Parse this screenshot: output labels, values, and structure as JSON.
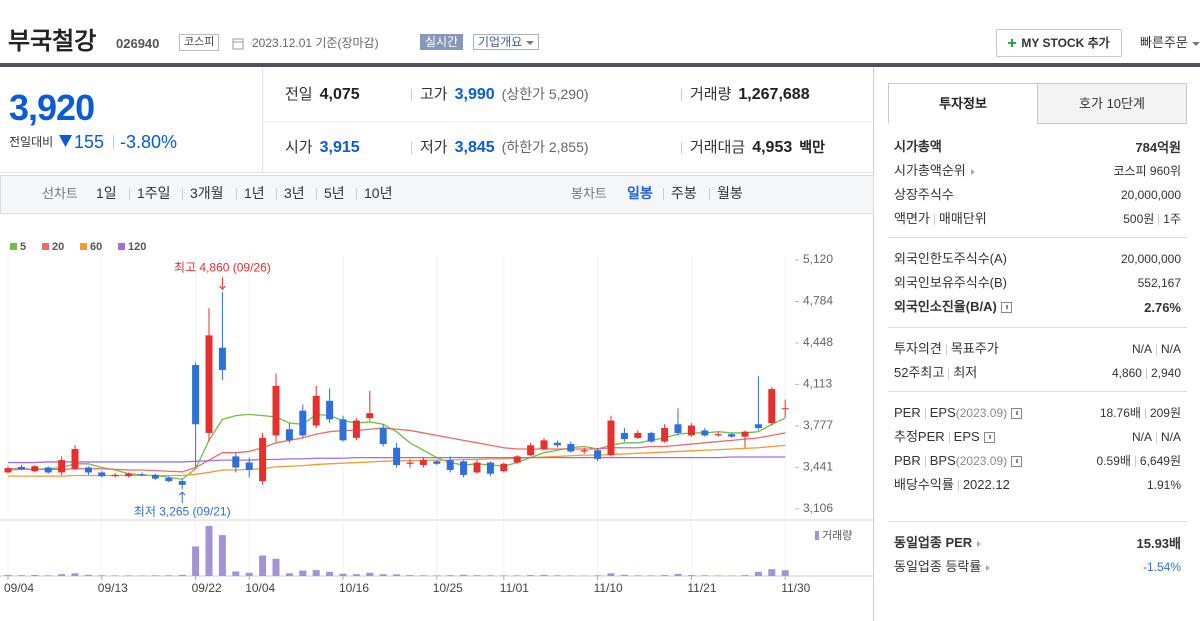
{
  "header": {
    "name": "부국철강",
    "code": "026940",
    "market": "코스피",
    "date": "2023.12.01 기준(장마감)",
    "realtime": "실시간",
    "overview": "기업개요",
    "my_stock": "MY STOCK 추가",
    "quick_order": "빠른주문"
  },
  "quote": {
    "price": "3,920",
    "color": "#0b5bd3",
    "change_label": "전일대비",
    "change": "155",
    "change_rate": "-3.80%",
    "stats": [
      {
        "label": "전일",
        "value": "4,075"
      },
      {
        "label": "고가",
        "value": "3,990",
        "note": "(상한가 5,290)",
        "color": "#0b5bd3"
      },
      {
        "label": "거래량",
        "value": "1,267,688"
      },
      {
        "label": "시가",
        "value": "3,915",
        "color": "#0b5bd3"
      },
      {
        "label": "저가",
        "value": "3,845",
        "note": "(하한가 2,855)",
        "color": "#0b5bd3"
      },
      {
        "label": "거래대금",
        "value": "4,953",
        "unit": "백만"
      }
    ]
  },
  "tabs": {
    "line_label": "선차트",
    "line_periods": [
      "1일",
      "1주일",
      "3개월",
      "1년",
      "3년",
      "5년",
      "10년"
    ],
    "candle_label": "봉차트",
    "candle_periods": [
      "일봉",
      "주봉",
      "월봉"
    ],
    "selected_candle": 0
  },
  "chart_data": {
    "type": "candlestick",
    "categories": [
      "09/04",
      null,
      null,
      null,
      null,
      null,
      null,
      "09/13",
      null,
      null,
      null,
      null,
      null,
      null,
      "09/22",
      null,
      null,
      null,
      "10/04",
      null,
      null,
      null,
      null,
      null,
      null,
      "10/16",
      null,
      null,
      null,
      null,
      null,
      null,
      "10/25",
      null,
      null,
      null,
      null,
      "11/01",
      null,
      null,
      null,
      null,
      null,
      null,
      "11/10",
      null,
      null,
      null,
      null,
      null,
      null,
      "11/21",
      null,
      null,
      null,
      null,
      null,
      null,
      "11/30"
    ],
    "open": [
      3400,
      3445,
      3410,
      3440,
      3400,
      3430,
      3440,
      3400,
      3370,
      3370,
      3385,
      3380,
      3355,
      3330,
      4270,
      3720,
      4410,
      3530,
      3480,
      3330,
      3700,
      3750,
      3900,
      3780,
      3980,
      3830,
      3680,
      3840,
      3760,
      3600,
      3470,
      3460,
      3490,
      3500,
      3490,
      3400,
      3480,
      3410,
      3480,
      3540,
      3590,
      3640,
      3630,
      3570,
      3580,
      3540,
      3720,
      3680,
      3720,
      3650,
      3790,
      3700,
      3740,
      3700,
      3710,
      3690,
      3790,
      3800,
      3915
    ],
    "high": [
      3450,
      3460,
      3460,
      3450,
      3530,
      3620,
      3450,
      3410,
      3395,
      3400,
      3400,
      3390,
      3370,
      3350,
      4290,
      4730,
      4860,
      3560,
      3520,
      3720,
      4200,
      3800,
      3950,
      4100,
      4080,
      3860,
      3840,
      4060,
      3790,
      3640,
      3510,
      3520,
      3500,
      3530,
      3500,
      3500,
      3490,
      3480,
      3540,
      3640,
      3680,
      3660,
      3650,
      3600,
      3600,
      3860,
      3760,
      3740,
      3730,
      3790,
      3920,
      3800,
      3760,
      3730,
      3720,
      3740,
      4180,
      4090,
      3990
    ],
    "low": [
      3390,
      3420,
      3400,
      3390,
      3380,
      3420,
      3380,
      3360,
      3360,
      3360,
      3370,
      3340,
      3320,
      3265,
      3440,
      3650,
      4150,
      3400,
      3360,
      3300,
      3650,
      3640,
      3680,
      3760,
      3800,
      3650,
      3660,
      3820,
      3610,
      3440,
      3440,
      3440,
      3460,
      3400,
      3360,
      3390,
      3370,
      3400,
      3470,
      3530,
      3580,
      3600,
      3560,
      3550,
      3490,
      3530,
      3650,
      3670,
      3640,
      3640,
      3700,
      3690,
      3690,
      3690,
      3680,
      3600,
      3740,
      3780,
      3845
    ],
    "close": [
      3435,
      3425,
      3450,
      3400,
      3500,
      3590,
      3400,
      3370,
      3380,
      3390,
      3380,
      3350,
      3330,
      3300,
      3790,
      4510,
      4230,
      3440,
      3420,
      3680,
      4100,
      3660,
      3700,
      4020,
      3830,
      3660,
      3820,
      3880,
      3630,
      3460,
      3480,
      3500,
      3470,
      3420,
      3380,
      3480,
      3390,
      3470,
      3530,
      3620,
      3660,
      3620,
      3570,
      3580,
      3510,
      3820,
      3670,
      3720,
      3650,
      3760,
      3720,
      3780,
      3700,
      3710,
      3690,
      3730,
      3760,
      4075,
      3920
    ],
    "up_color": "#e5302d",
    "down_color": "#2f6fd8",
    "series": [
      {
        "name": "5",
        "color": "#6cc04a",
        "values": [
          3420,
          3425,
          3425,
          3430,
          3440,
          3470,
          3470,
          3440,
          3420,
          3390,
          3380,
          3375,
          3360,
          3345,
          3430,
          3660,
          3830,
          3860,
          3870,
          3860,
          3850,
          3800,
          3790,
          3870,
          3860,
          3820,
          3800,
          3810,
          3790,
          3730,
          3640,
          3580,
          3520,
          3480,
          3460,
          3470,
          3460,
          3450,
          3480,
          3520,
          3560,
          3580,
          3600,
          3610,
          3590,
          3620,
          3640,
          3640,
          3660,
          3680,
          3710,
          3720,
          3720,
          3730,
          3720,
          3720,
          3730,
          3790,
          3840
        ]
      },
      {
        "name": "20",
        "color": "#f06a6a",
        "values": [
          3430,
          3430,
          3425,
          3425,
          3425,
          3430,
          3430,
          3430,
          3425,
          3420,
          3420,
          3415,
          3410,
          3405,
          3440,
          3500,
          3560,
          3560,
          3570,
          3600,
          3640,
          3660,
          3680,
          3710,
          3730,
          3740,
          3740,
          3750,
          3760,
          3750,
          3740,
          3720,
          3700,
          3680,
          3660,
          3640,
          3620,
          3600,
          3590,
          3590,
          3590,
          3590,
          3590,
          3590,
          3590,
          3600,
          3600,
          3600,
          3610,
          3610,
          3620,
          3630,
          3640,
          3650,
          3660,
          3670,
          3680,
          3700,
          3720
        ]
      },
      {
        "name": "60",
        "color": "#f39a32",
        "values": [
          3370,
          3370,
          3370,
          3370,
          3370,
          3375,
          3375,
          3375,
          3375,
          3375,
          3375,
          3375,
          3375,
          3375,
          3385,
          3400,
          3420,
          3420,
          3425,
          3430,
          3445,
          3450,
          3455,
          3465,
          3470,
          3475,
          3480,
          3485,
          3490,
          3495,
          3495,
          3500,
          3500,
          3500,
          3505,
          3505,
          3510,
          3510,
          3515,
          3520,
          3525,
          3530,
          3535,
          3540,
          3540,
          3545,
          3550,
          3555,
          3560,
          3565,
          3570,
          3575,
          3580,
          3585,
          3590,
          3595,
          3600,
          3610,
          3620
        ]
      },
      {
        "name": "120",
        "color": "#a070d8",
        "values": [
          3480,
          3480,
          3480,
          3485,
          3485,
          3485,
          3485,
          3485,
          3485,
          3485,
          3485,
          3485,
          3485,
          3485,
          3490,
          3495,
          3500,
          3500,
          3500,
          3505,
          3505,
          3510,
          3510,
          3515,
          3515,
          3515,
          3520,
          3520,
          3520,
          3520,
          3520,
          3520,
          3520,
          3520,
          3520,
          3520,
          3520,
          3520,
          3520,
          3520,
          3520,
          3520,
          3520,
          3520,
          3520,
          3520,
          3520,
          3520,
          3520,
          3520,
          3520,
          3520,
          3520,
          3520,
          3525,
          3525,
          3525,
          3525,
          3525
        ]
      }
    ],
    "volume": {
      "name": "거래량",
      "color": "#a392d6",
      "values": [
        200000,
        180000,
        220000,
        150000,
        400000,
        600000,
        250000,
        150000,
        120000,
        130000,
        110000,
        150000,
        160000,
        250000,
        6500000,
        11000000,
        9000000,
        1000000,
        700000,
        4500000,
        3800000,
        600000,
        1200000,
        1300000,
        900000,
        500000,
        400000,
        700000,
        400000,
        350000,
        200000,
        150000,
        120000,
        180000,
        250000,
        180000,
        150000,
        130000,
        140000,
        200000,
        250000,
        150000,
        130000,
        110000,
        150000,
        600000,
        250000,
        150000,
        130000,
        200000,
        450000,
        200000,
        150000,
        120000,
        110000,
        200000,
        900000,
        1500000,
        1267688
      ]
    },
    "high_label": "최고 4,860 (09/26)",
    "low_label": "최저 3,265 (09/21)",
    "ylim": [
      3015,
      5282
    ],
    "yticks": [
      {
        "value": 5120,
        "label": "5,120"
      },
      {
        "value": 4784,
        "label": "4,784"
      },
      {
        "value": 4448,
        "label": "4,448"
      },
      {
        "value": 4113,
        "label": "4,113"
      },
      {
        "value": 3777,
        "label": "3,777"
      },
      {
        "value": 3441,
        "label": "3,441"
      },
      {
        "value": 3106,
        "label": "3,106"
      }
    ]
  },
  "sidebar": {
    "tabs": [
      "투자정보",
      "호가 10단계"
    ],
    "selected_tab": 0,
    "sections": [
      [
        {
          "label": "시가총액",
          "value": "784억원",
          "bold": true
        },
        {
          "label": "시가총액순위",
          "link": true,
          "value": "코스피 960위"
        },
        {
          "label": "상장주식수",
          "value": "20,000,000"
        },
        {
          "label": "액면가",
          "label2": "매매단위",
          "value": "500원",
          "value2": "1주"
        }
      ],
      [
        {
          "label": "외국인한도주식수(A)",
          "value": "20,000,000"
        },
        {
          "label": "외국인보유주식수(B)",
          "value": "552,167"
        },
        {
          "label": "외국인소진율(B/A)",
          "help": true,
          "value": "2.76%",
          "bold": true
        }
      ],
      [
        {
          "label": "투자의견",
          "label2": "목표주가",
          "value": "N/A",
          "value2": "N/A"
        },
        {
          "label": "52주최고",
          "label2": "최저",
          "value": "4,860",
          "value2": "2,940"
        }
      ],
      [
        {
          "label": "PER",
          "label2": "EPS",
          "note": "(2023.09)",
          "help": true,
          "value": "18.76배",
          "value2": "209원"
        },
        {
          "label": "추정PER",
          "label2": "EPS",
          "help": true,
          "value": "N/A",
          "value2": "N/A"
        },
        {
          "label": "PBR",
          "label2": "BPS",
          "note": "(2023.09)",
          "help": true,
          "value": "0.59배",
          "value2": "6,649원"
        },
        {
          "label": "배당수익률",
          "label2": "2022.12",
          "value": "1.91%"
        }
      ],
      [
        {
          "label": "동일업종 PER",
          "link": true,
          "value": "15.93배",
          "bold": true
        },
        {
          "label": "동일업종 등락률",
          "link": true,
          "value": "-1.54%",
          "color": "#2f6fd8"
        }
      ]
    ]
  }
}
